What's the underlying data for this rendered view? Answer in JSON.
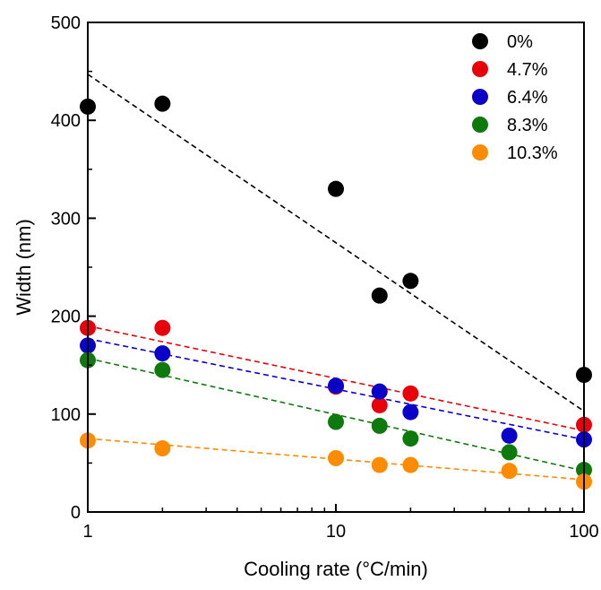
{
  "chart_data": {
    "type": "scatter",
    "xscale": "log",
    "xlabel": "Cooling rate (°C/min)",
    "ylabel": "Width (nm)",
    "xlim": [
      1,
      100
    ],
    "ylim": [
      0,
      500
    ],
    "xticks": [
      1,
      10,
      100
    ],
    "xtick_labels": [
      "1",
      "10",
      "100"
    ],
    "yticks": [
      0,
      100,
      200,
      300,
      400,
      500
    ],
    "ytick_labels": [
      "0",
      "100",
      "200",
      "300",
      "400",
      "500"
    ],
    "grid": false,
    "legend_position": "top-right",
    "series": [
      {
        "name": "0%",
        "color": "#000000",
        "x": [
          1,
          2,
          10,
          15,
          20,
          100
        ],
        "y": [
          414,
          417,
          330,
          221,
          236,
          140
        ],
        "fit": [
          [
            1,
            447
          ],
          [
            100,
            103
          ]
        ]
      },
      {
        "name": "4.7%",
        "color": "#e8000b",
        "x": [
          1,
          2,
          10,
          15,
          20,
          100
        ],
        "y": [
          188,
          188,
          128,
          109,
          121,
          89
        ],
        "fit": [
          [
            1,
            190
          ],
          [
            100,
            83
          ]
        ]
      },
      {
        "name": "6.4%",
        "color": "#0a00c8",
        "x": [
          1,
          2,
          10,
          15,
          20,
          50,
          100
        ],
        "y": [
          170,
          162,
          129,
          123,
          102,
          78,
          74
        ],
        "fit": [
          [
            1,
            177
          ],
          [
            100,
            74
          ]
        ]
      },
      {
        "name": "8.3%",
        "color": "#0e7a0e",
        "x": [
          1,
          2,
          10,
          15,
          20,
          50,
          100
        ],
        "y": [
          155,
          145,
          92,
          88,
          75,
          61,
          43
        ],
        "fit": [
          [
            1,
            157
          ],
          [
            100,
            42
          ]
        ]
      },
      {
        "name": "10.3%",
        "color": "#ff8c00",
        "x": [
          1,
          2,
          10,
          15,
          20,
          50,
          100
        ],
        "y": [
          73,
          65,
          55,
          48,
          48,
          42,
          31
        ],
        "fit": [
          [
            1,
            75
          ],
          [
            100,
            33
          ]
        ]
      }
    ]
  }
}
